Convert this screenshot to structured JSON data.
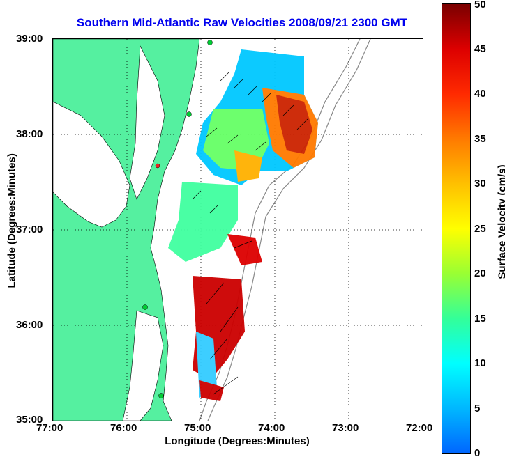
{
  "title": "Southern Mid-Atlantic Raw Velocities 2008/09/21 2300 GMT",
  "axes": {
    "x_title": "Longitude (Degrees:Minutes)",
    "y_title": "Latitude (Degrees:Minutes)",
    "x_ticks": [
      "77:00",
      "76:00",
      "75:00",
      "74:00",
      "73:00",
      "72:00"
    ],
    "y_ticks": [
      "39:00",
      "38:00",
      "37:00",
      "36:00",
      "35:00"
    ]
  },
  "colorbar": {
    "title": "Surface Velocity (cm/s)",
    "ticks": [
      "0",
      "5",
      "10",
      "15",
      "20",
      "25",
      "30",
      "35",
      "40",
      "45",
      "50"
    ],
    "min": 0,
    "max": 50
  },
  "colors": {
    "land": "#55f0a0",
    "water": "#ffffff",
    "title": "#0000ee",
    "station_green": "#00cc33",
    "station_red": "#ee2222"
  }
}
